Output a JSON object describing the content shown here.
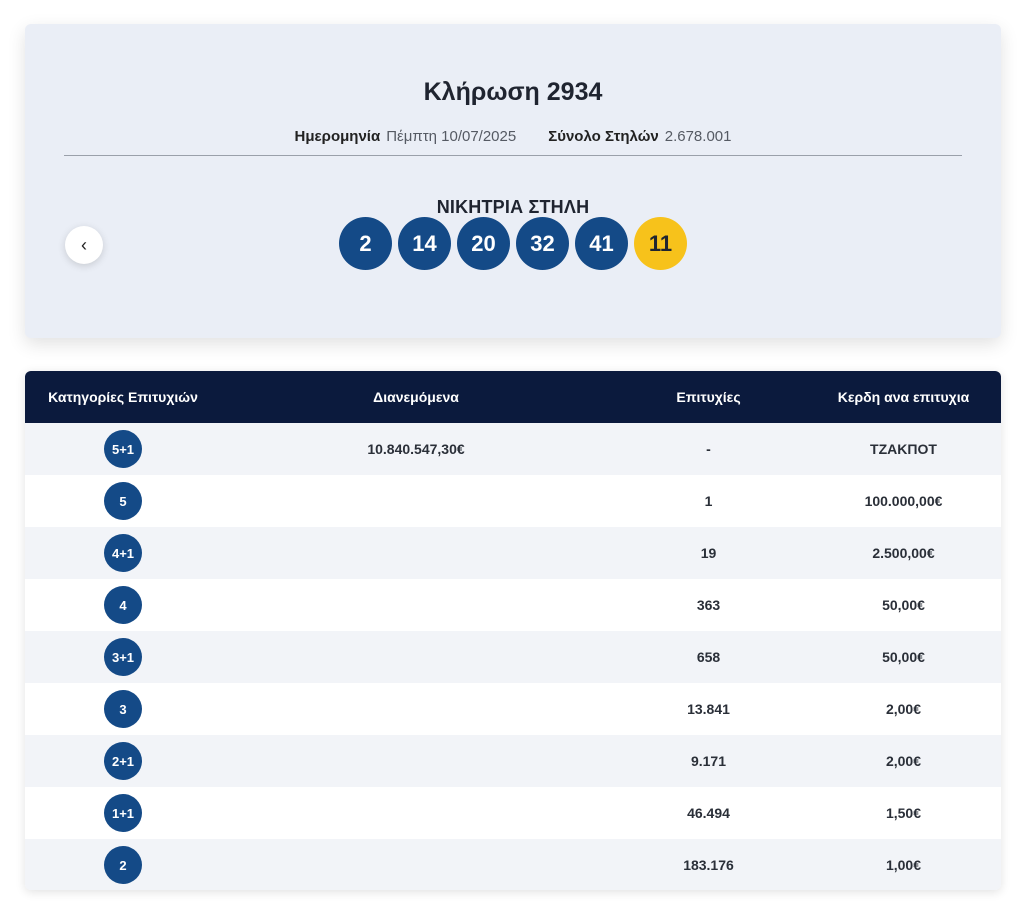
{
  "draw": {
    "title": "Κλήρωση 2934",
    "date_label": "Ημερομηνία",
    "date_value": "Πέμπτη 10/07/2025",
    "columns_label": "Σύνολο Στηλών",
    "columns_value": "2.678.001",
    "winning_title": "ΝΙΚΗΤΡΙΑ ΣΤΗΛΗ",
    "prev_icon": "‹",
    "numbers": [
      "2",
      "14",
      "20",
      "32",
      "41"
    ],
    "bonus": "11"
  },
  "colors": {
    "ball": "#144a87",
    "bonus": "#f7c21b",
    "header": "#0b1a3d"
  },
  "table": {
    "headers": [
      "Κατηγορίες Επιτυχιών",
      "Διανεμόμενα",
      "Επιτυχίες",
      "Κερδη ανα επιτυχια"
    ],
    "rows": [
      {
        "cat": "5+1",
        "dist": "10.840.547,30€",
        "wins": "-",
        "prize": "ΤΖΑΚΠΟΤ"
      },
      {
        "cat": "5",
        "dist": "",
        "wins": "1",
        "prize": "100.000,00€"
      },
      {
        "cat": "4+1",
        "dist": "",
        "wins": "19",
        "prize": "2.500,00€"
      },
      {
        "cat": "4",
        "dist": "",
        "wins": "363",
        "prize": "50,00€"
      },
      {
        "cat": "3+1",
        "dist": "",
        "wins": "658",
        "prize": "50,00€"
      },
      {
        "cat": "3",
        "dist": "",
        "wins": "13.841",
        "prize": "2,00€"
      },
      {
        "cat": "2+1",
        "dist": "",
        "wins": "9.171",
        "prize": "2,00€"
      },
      {
        "cat": "1+1",
        "dist": "",
        "wins": "46.494",
        "prize": "1,50€"
      },
      {
        "cat": "2",
        "dist": "",
        "wins": "183.176",
        "prize": "1,00€"
      }
    ]
  }
}
